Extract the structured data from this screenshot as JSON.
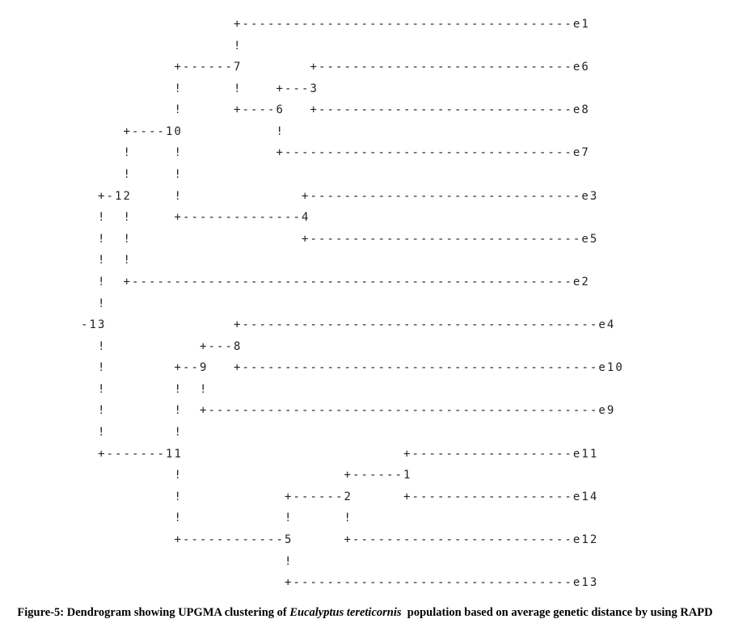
{
  "lines": [
    "                  +---------------------------------------e1",
    "                  !",
    "           +------7        +------------------------------e6",
    "           !      !    +---3",
    "           !      +----6   +------------------------------e8",
    "     +----10           !",
    "     !     !           +----------------------------------e7",
    "     !     !",
    "  +-12     !              +--------------------------------e3",
    "  !  !     +--------------4",
    "  !  !                    +--------------------------------e5",
    "  !  !",
    "  !  +----------------------------------------------------e2",
    "  !",
    "-13               +------------------------------------------e4",
    "  !           +---8",
    "  !        +--9   +------------------------------------------e10",
    "  !        !  !",
    "  !        !  +----------------------------------------------e9",
    "  !        !",
    "  +-------11                          +-------------------e11",
    "           !                   +------1",
    "           !            +------2      +-------------------e14",
    "           !            !      !",
    "           +------------5      +--------------------------e12",
    "                        !",
    "                        +---------------------------------e13"
  ],
  "caption": {
    "prefix": "Figure-5: Dendrogram showing UPGMA clustering of ",
    "species": "Eucalyptus tereticornis",
    "suffix": "  population based on average genetic distance by using RAPD"
  }
}
